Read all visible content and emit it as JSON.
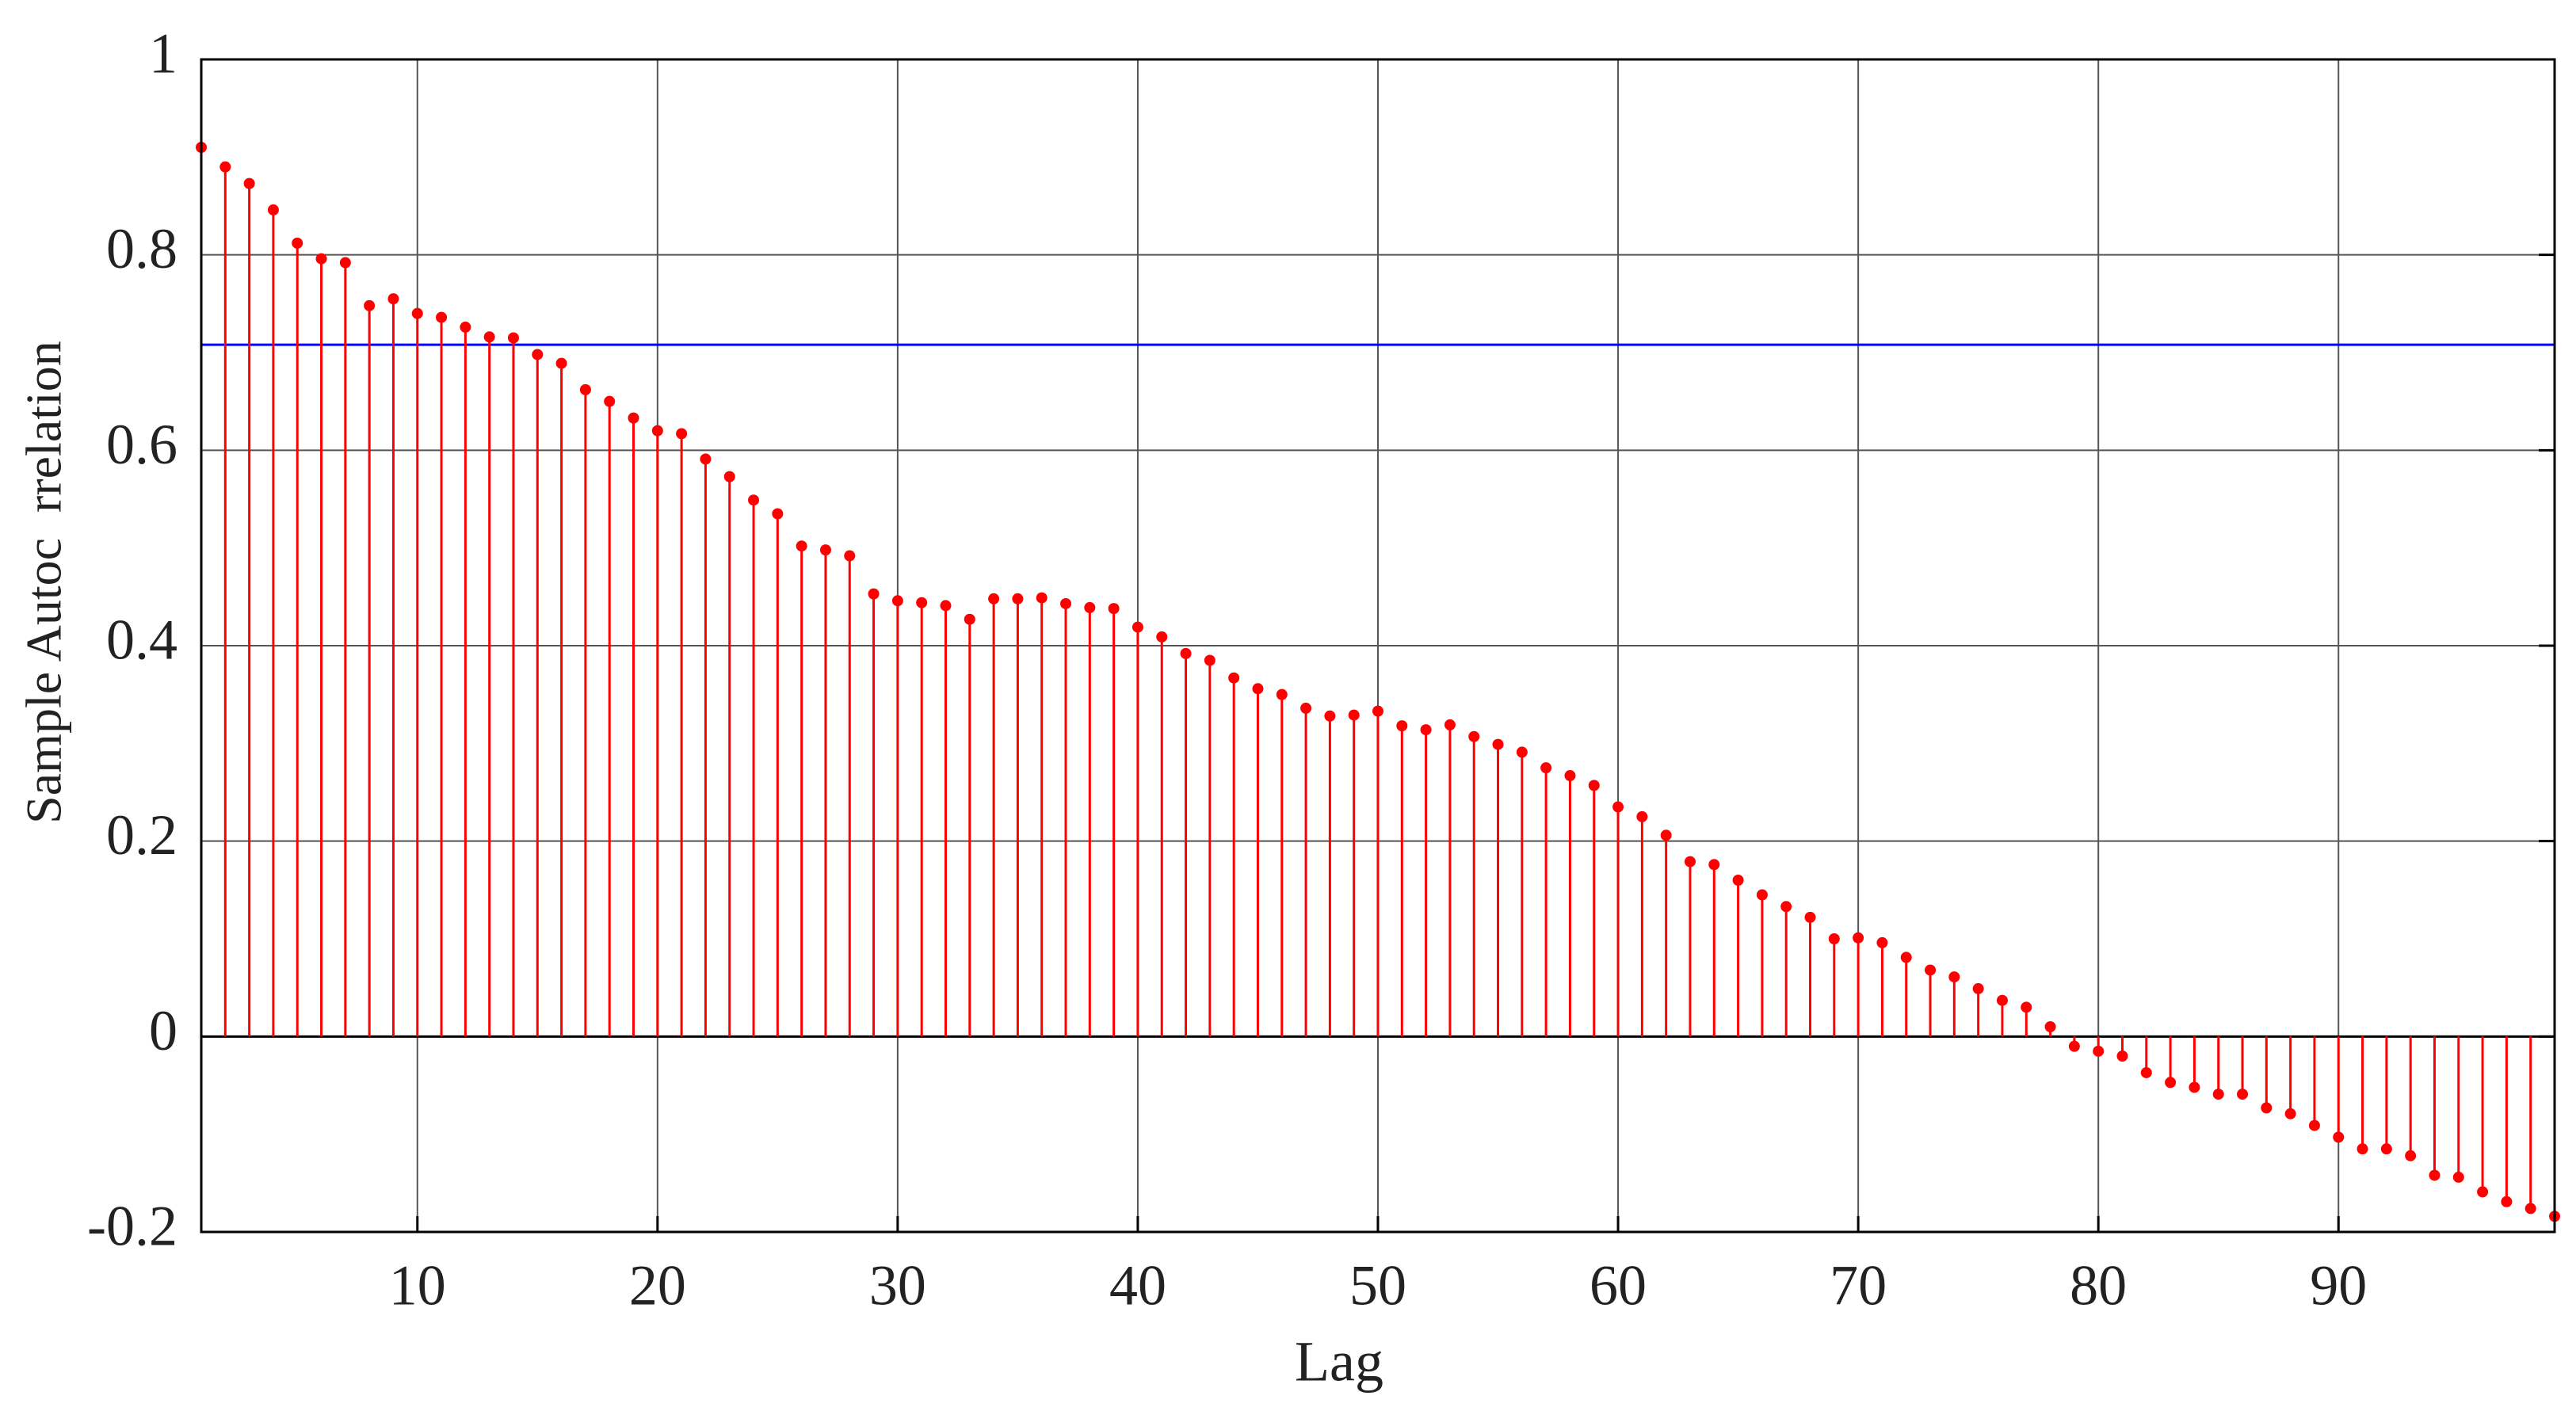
{
  "chart_data": {
    "type": "stem",
    "xlabel": "Lag",
    "ylabel": "Sample Autoc  rrelation",
    "x": [
      1,
      2,
      3,
      4,
      5,
      6,
      7,
      8,
      9,
      10,
      11,
      12,
      13,
      14,
      15,
      16,
      17,
      18,
      19,
      20,
      21,
      22,
      23,
      24,
      25,
      26,
      27,
      28,
      29,
      30,
      31,
      32,
      33,
      34,
      35,
      36,
      37,
      38,
      39,
      40,
      41,
      42,
      43,
      44,
      45,
      46,
      47,
      48,
      49,
      50,
      51,
      52,
      53,
      54,
      55,
      56,
      57,
      58,
      59,
      60,
      61,
      62,
      63,
      64,
      65,
      66,
      67,
      68,
      69,
      70,
      71,
      72,
      73,
      74,
      75,
      76,
      77,
      78,
      79,
      80,
      81,
      82,
      83,
      84,
      85,
      86,
      87,
      88,
      89,
      90,
      91,
      92,
      93,
      94,
      95,
      96,
      97,
      98,
      99
    ],
    "series": [
      {
        "color": "#ff0000",
        "values": [
          0.91,
          0.89,
          0.873,
          0.846,
          0.812,
          0.796,
          0.792,
          0.748,
          0.755,
          0.74,
          0.736,
          0.726,
          0.716,
          0.715,
          0.698,
          0.689,
          0.662,
          0.65,
          0.633,
          0.62,
          0.617,
          0.591,
          0.573,
          0.549,
          0.535,
          0.502,
          0.498,
          0.492,
          0.453,
          0.446,
          0.444,
          0.441,
          0.427,
          0.448,
          0.448,
          0.449,
          0.443,
          0.439,
          0.438,
          0.419,
          0.409,
          0.392,
          0.385,
          0.367,
          0.356,
          0.35,
          0.336,
          0.328,
          0.329,
          0.333,
          0.318,
          0.314,
          0.319,
          0.307,
          0.299,
          0.291,
          0.275,
          0.267,
          0.257,
          0.235,
          0.225,
          0.206,
          0.179,
          0.176,
          0.16,
          0.145,
          0.133,
          0.122,
          0.1,
          0.101,
          0.096,
          0.081,
          0.068,
          0.061,
          0.049,
          0.037,
          0.03,
          0.01,
          -0.01,
          -0.015,
          -0.02,
          -0.037,
          -0.047,
          -0.052,
          -0.059,
          -0.059,
          -0.073,
          -0.079,
          -0.091,
          -0.103,
          -0.115,
          -0.115,
          -0.122,
          -0.142,
          -0.144,
          -0.159,
          -0.169,
          -0.176,
          -0.184
        ]
      }
    ],
    "hline": {
      "value": 0.708,
      "color": "#0000ff"
    },
    "xlim": [
      1,
      99
    ],
    "xticks": [
      10,
      20,
      30,
      40,
      50,
      60,
      70,
      80,
      90
    ],
    "ylim": [
      -0.2,
      1
    ],
    "yticks": [
      -0.2,
      0,
      0.2,
      0.4,
      0.6,
      0.8,
      1
    ],
    "grid": true
  }
}
